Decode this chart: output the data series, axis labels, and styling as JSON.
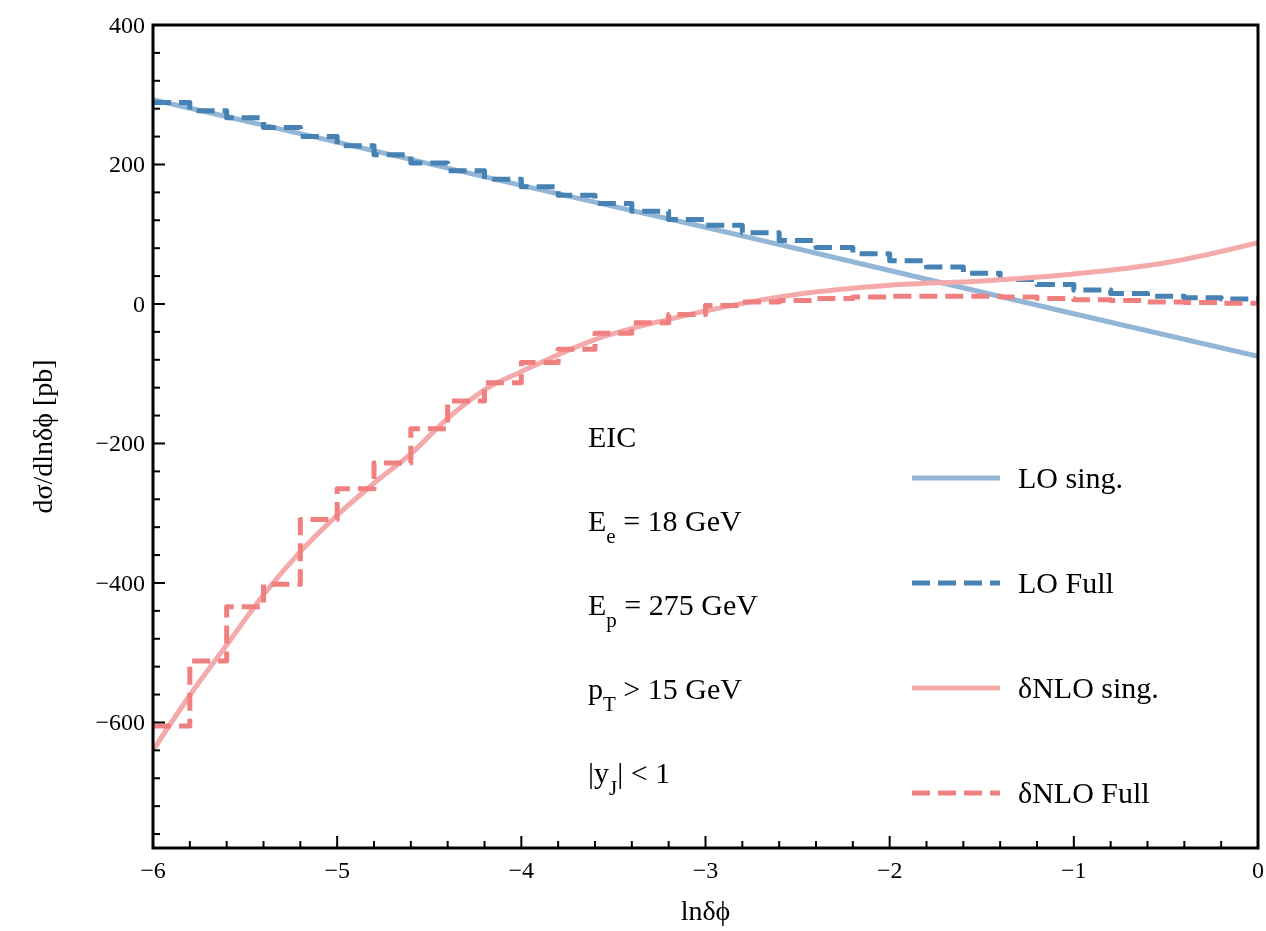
{
  "chart_data": {
    "type": "line",
    "xlabel": "lnδϕ",
    "ylabel": "dσ/dlnδϕ [pb]",
    "xlim": [
      -6,
      0
    ],
    "ylim": [
      -780,
      400
    ],
    "xticks": [
      {
        "value": -6,
        "label": "−6"
      },
      {
        "value": -5.8,
        "label": null
      },
      {
        "value": -5.6,
        "label": null
      },
      {
        "value": -5.4,
        "label": null
      },
      {
        "value": -5.2,
        "label": null
      },
      {
        "value": -5,
        "label": "−5"
      },
      {
        "value": -4.8,
        "label": null
      },
      {
        "value": -4.6,
        "label": null
      },
      {
        "value": -4.4,
        "label": null
      },
      {
        "value": -4.2,
        "label": null
      },
      {
        "value": -4,
        "label": "−4"
      },
      {
        "value": -3.8,
        "label": null
      },
      {
        "value": -3.6,
        "label": null
      },
      {
        "value": -3.4,
        "label": null
      },
      {
        "value": -3.2,
        "label": null
      },
      {
        "value": -3,
        "label": "−3"
      },
      {
        "value": -2.8,
        "label": null
      },
      {
        "value": -2.6,
        "label": null
      },
      {
        "value": -2.4,
        "label": null
      },
      {
        "value": -2.2,
        "label": null
      },
      {
        "value": -2,
        "label": "−2"
      },
      {
        "value": -1.8,
        "label": null
      },
      {
        "value": -1.6,
        "label": null
      },
      {
        "value": -1.4,
        "label": null
      },
      {
        "value": -1.2,
        "label": null
      },
      {
        "value": -1,
        "label": "−1"
      },
      {
        "value": -0.8,
        "label": null
      },
      {
        "value": -0.6,
        "label": null
      },
      {
        "value": -0.4,
        "label": null
      },
      {
        "value": -0.2,
        "label": null
      },
      0
    ],
    "yticks": [
      {
        "value": -760,
        "label": null
      },
      {
        "value": -720,
        "label": null
      },
      {
        "value": -680,
        "label": null
      },
      {
        "value": -640,
        "label": null
      },
      {
        "value": -600,
        "label": "−600"
      },
      {
        "value": -560,
        "label": null
      },
      {
        "value": -520,
        "label": null
      },
      {
        "value": -480,
        "label": null
      },
      {
        "value": -440,
        "label": null
      },
      {
        "value": -400,
        "label": "−400"
      },
      {
        "value": -360,
        "label": null
      },
      {
        "value": -320,
        "label": null
      },
      {
        "value": -280,
        "label": null
      },
      {
        "value": -240,
        "label": null
      },
      {
        "value": -200,
        "label": "−200"
      },
      {
        "value": -160,
        "label": null
      },
      {
        "value": -120,
        "label": null
      },
      {
        "value": -80,
        "label": null
      },
      {
        "value": -40,
        "label": null
      },
      0,
      {
        "value": 40,
        "label": null
      },
      {
        "value": 80,
        "label": null
      },
      {
        "value": 120,
        "label": null
      },
      {
        "value": 160,
        "label": null
      },
      200,
      {
        "value": 240,
        "label": null
      },
      {
        "value": 280,
        "label": null
      },
      {
        "value": 320,
        "label": null
      },
      {
        "value": 360,
        "label": null
      },
      400
    ],
    "grid": false,
    "legend": "bottom right",
    "annotations": [
      "EIC",
      "E$_{e}$ = 18 GeV",
      "E$_{p}$ = 275 GeV",
      "p$_{T}$ > 15 GeV",
      "|y$_{J}$| < 1"
    ],
    "series": [
      {
        "name": "LO sing.",
        "line_style": "solid",
        "color": "#94b6d6",
        "x": [
          -6,
          -5,
          -4,
          -3,
          -2,
          -1,
          0
        ],
        "values": [
          293,
          232,
          170,
          110,
          48,
          -14,
          -75
        ]
      },
      {
        "name": "LO Full",
        "type": "step",
        "line_style": "dashed",
        "color": "#4682b4",
        "x": [
          -6,
          -5.8,
          -5.6,
          -5.4,
          -5.2,
          -5,
          -4.8,
          -4.6,
          -4.4,
          -4.2,
          -4,
          -3.8,
          -3.6,
          -3.4,
          -3.2,
          -3,
          -2.8,
          -2.6,
          -2.4,
          -2.2,
          -2,
          -1.8,
          -1.6,
          -1.4,
          -1.2,
          -1,
          -0.8,
          -0.6,
          -0.4,
          -0.2,
          0
        ],
        "values": [
          289,
          277,
          267,
          253,
          240,
          227,
          214,
          202,
          191,
          179,
          168,
          156,
          144,
          133,
          121,
          113,
          102,
          91,
          81,
          72,
          62,
          53,
          44,
          35,
          28,
          20,
          15,
          11,
          9,
          7,
          7
        ]
      },
      {
        "name": "δNLO sing.",
        "line_style": "solid",
        "color": "#f4aaaa",
        "x": [
          -6,
          -5.8,
          -5.6,
          -5.4,
          -5.2,
          -5,
          -4.8,
          -4.6,
          -4.4,
          -4.2,
          -4,
          -3.6,
          -3.2,
          -3,
          -2.5,
          -2,
          -1.5,
          -1,
          -0.5,
          0
        ],
        "values": [
          -640,
          -561,
          -489,
          -417,
          -355,
          -303,
          -257,
          -215,
          -164,
          -123,
          -97,
          -51,
          -22,
          -10,
          14,
          27,
          33,
          43,
          59,
          88
        ]
      },
      {
        "name": "δNLO Full",
        "type": "step",
        "line_style": "dashed",
        "color": "#f08080",
        "x": [
          -6,
          -5.8,
          -5.6,
          -5.4,
          -5.2,
          -5,
          -4.8,
          -4.6,
          -4.4,
          -4.2,
          -4,
          -3.8,
          -3.6,
          -3.4,
          -3.2,
          -3,
          -2.8,
          -2.6,
          -2.4,
          -2.2,
          -2,
          -1.8,
          -1.6,
          -1.4,
          -1.2,
          -1,
          -0.8,
          -0.6,
          -0.4,
          -0.2,
          0
        ],
        "values": [
          -605,
          -512,
          -434,
          -402,
          -309,
          -265,
          -228,
          -179,
          -139,
          -113,
          -84,
          -65,
          -42,
          -27,
          -15,
          -2,
          3,
          5,
          8,
          10,
          11,
          11,
          11,
          10,
          8,
          6,
          5,
          3,
          2,
          1,
          1
        ]
      }
    ]
  }
}
